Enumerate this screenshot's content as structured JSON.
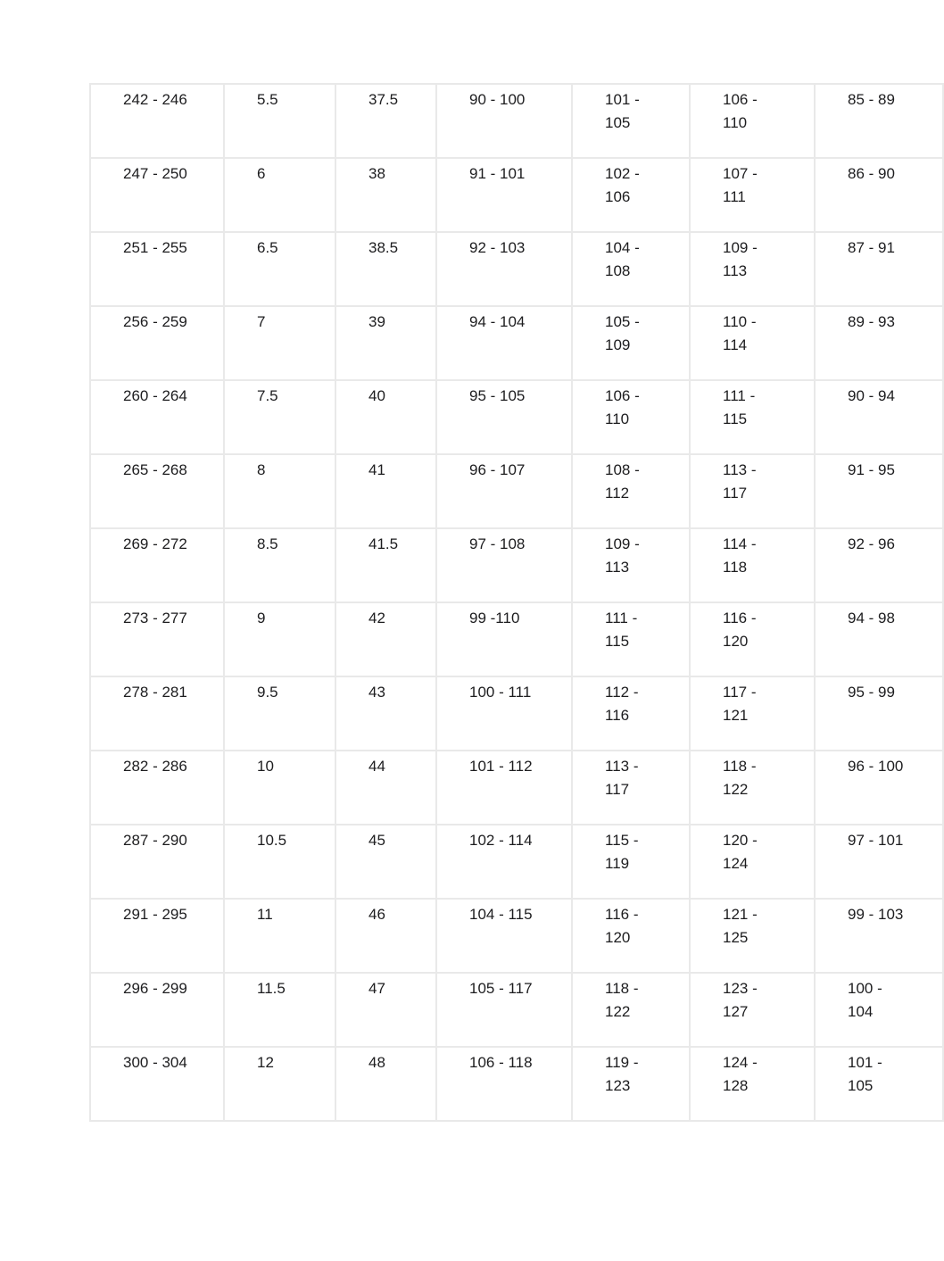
{
  "colors": {
    "background": "#ffffff",
    "border": "#e9e9e9",
    "text": "#1d1d1f"
  },
  "table": {
    "rows": [
      [
        "242 - 246",
        "5.5",
        "37.5",
        "90 - 100",
        "101 - 105",
        "106 - 110",
        "85 - 89"
      ],
      [
        "247 - 250",
        "6",
        "38",
        "91 - 101",
        "102 - 106",
        "107 - 111",
        "86 - 90"
      ],
      [
        "251 - 255",
        "6.5",
        "38.5",
        "92 - 103",
        "104 - 108",
        "109 - 113",
        "87 - 91"
      ],
      [
        "256 - 259",
        "7",
        "39",
        "94 - 104",
        "105 - 109",
        "110 - 114",
        "89 - 93"
      ],
      [
        "260 - 264",
        "7.5",
        "40",
        "95 - 105",
        "106 - 110",
        "111 - 115",
        "90 - 94"
      ],
      [
        "265 - 268",
        "8",
        "41",
        "96 - 107",
        "108 - 112",
        "113 - 117",
        "91 - 95"
      ],
      [
        "269 - 272",
        "8.5",
        "41.5",
        "97 - 108",
        "109 - 113",
        "114 - 118",
        "92 - 96"
      ],
      [
        "273 - 277",
        "9",
        "42",
        "99 -110",
        "111 - 115",
        "116 - 120",
        "94 - 98"
      ],
      [
        "278 - 281",
        "9.5",
        "43",
        "100 - 111",
        "112 - 116",
        "117 - 121",
        "95 - 99"
      ],
      [
        "282 - 286",
        "10",
        "44",
        "101 - 112",
        "113 - 117",
        "118 - 122",
        "96 - 100"
      ],
      [
        "287 - 290",
        "10.5",
        "45",
        "102 - 114",
        "115 - 119",
        "120 - 124",
        "97 - 101"
      ],
      [
        "291 - 295",
        "11",
        "46",
        "104 - 115",
        "116 - 120",
        "121 - 125",
        "99 - 103"
      ],
      [
        "296 - 299",
        "11.5",
        "47",
        "105 - 117",
        "118 - 122",
        "123 - 127",
        "100 - 104"
      ],
      [
        "300 - 304",
        "12",
        "48",
        "106 - 118",
        "119 - 123",
        "124 - 128",
        "101 - 105"
      ]
    ]
  }
}
